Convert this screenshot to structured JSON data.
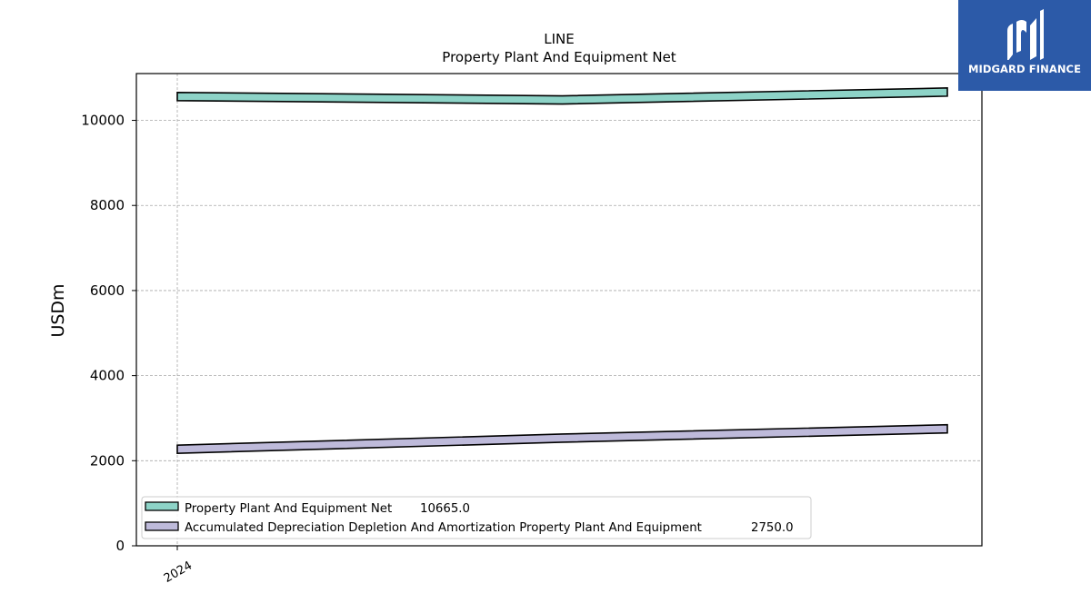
{
  "brand": {
    "name": "MIDGARD FINANCE",
    "background": "#2c5aa8",
    "icon": "midgard-logo-icon"
  },
  "chart_data": {
    "type": "line",
    "title": "LINE",
    "subtitle": "Property Plant And Equipment Net",
    "xlabel": "",
    "ylabel": "USDm",
    "x_tick_labels": [
      "2024"
    ],
    "x": [
      0,
      1,
      2
    ],
    "ylim": [
      0,
      11100
    ],
    "yticks": [
      0,
      2000,
      4000,
      6000,
      8000,
      10000
    ],
    "grid": true,
    "legend_position": "lower-left",
    "series": [
      {
        "name": "Property Plant And Equipment Net",
        "legend_value": "10665.0",
        "values": [
          10560,
          10480,
          10665
        ],
        "color": "#8dd3c7"
      },
      {
        "name": "Accumulated Depreciation Depletion And Amortization Property Plant And Equipment",
        "legend_value": "2750.0",
        "values": [
          2270,
          2530,
          2750
        ],
        "color": "#bebada"
      }
    ]
  }
}
